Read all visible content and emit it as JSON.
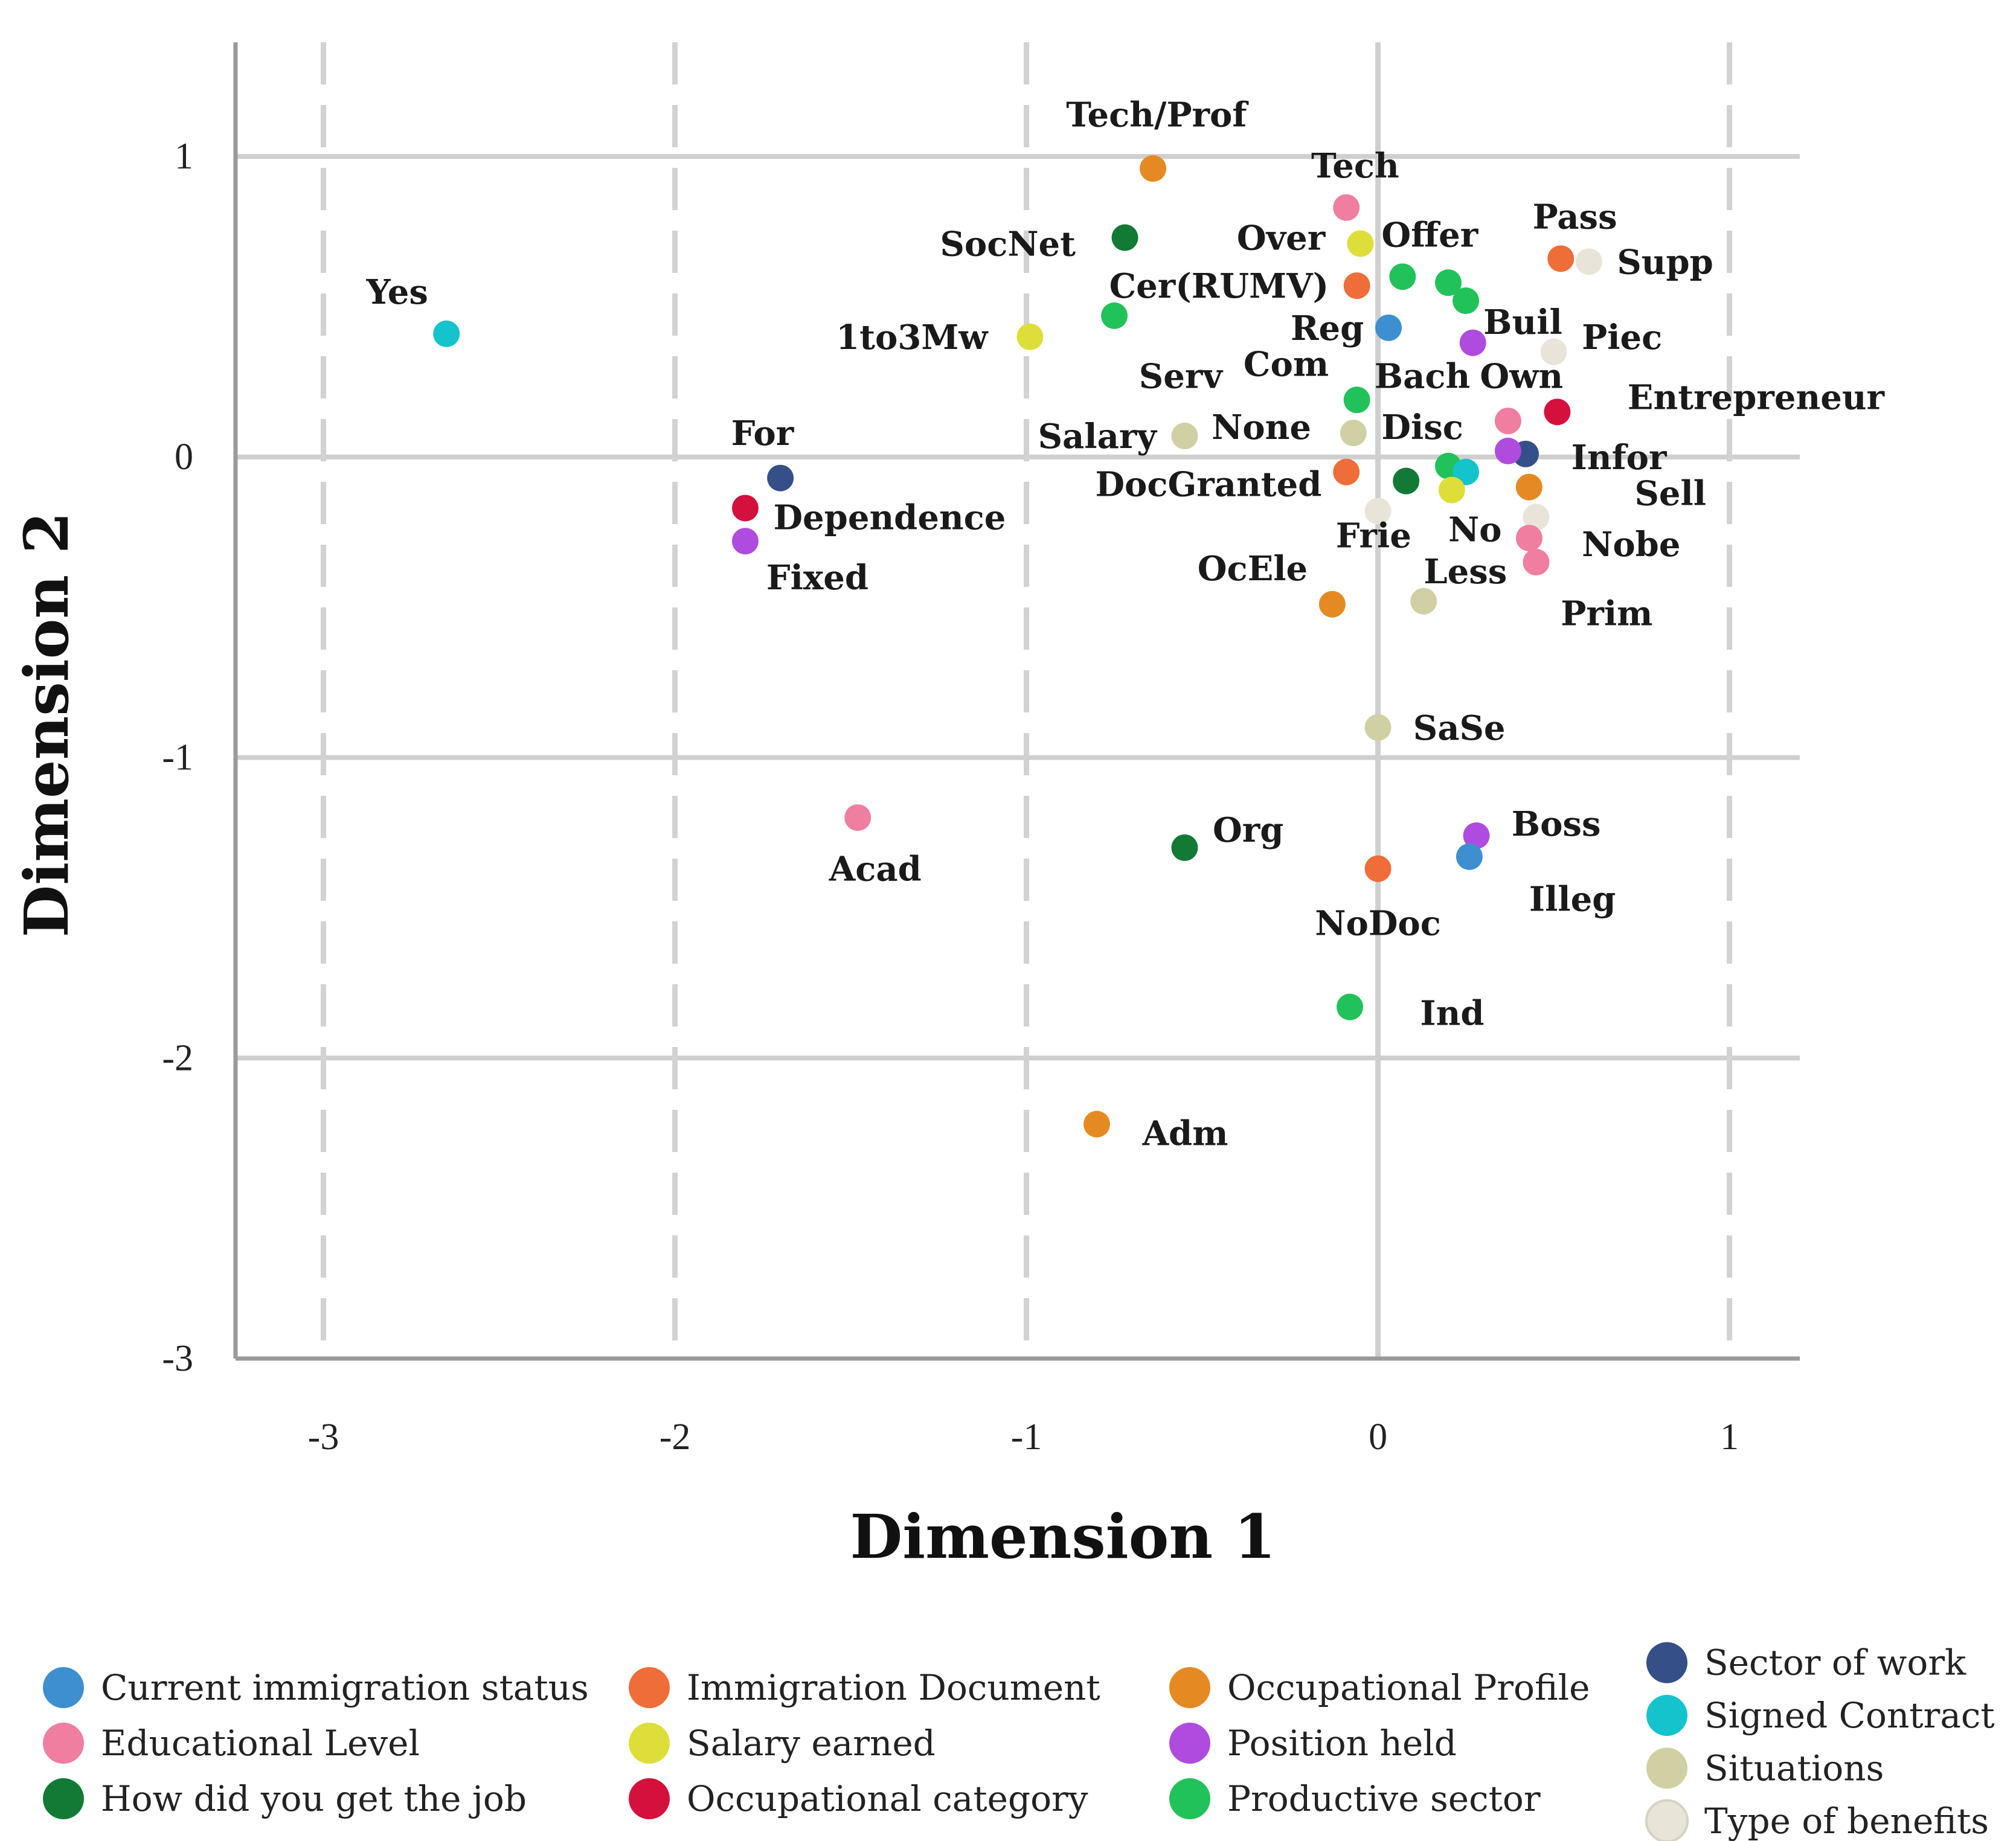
{
  "chart_data": {
    "type": "scatter",
    "xlabel": "Dimension 1",
    "ylabel": "Dimension 2",
    "xlim": [
      -3.25,
      1.2
    ],
    "ylim": [
      -3.0,
      1.38
    ],
    "xticks": [
      -3,
      -2,
      -1,
      0,
      1
    ],
    "yticks": [
      1,
      0,
      -1,
      -2,
      -3
    ],
    "dashed_vlines": [
      -3,
      -2,
      -1,
      1
    ],
    "solid_vlines": [
      0
    ],
    "hlines": [
      1,
      0,
      -1,
      -2
    ],
    "categories": [
      {
        "name": "Current immigration status",
        "color": "#3d8fd0"
      },
      {
        "name": "Educational Level",
        "color": "#f07ea0"
      },
      {
        "name": "How did you get the job",
        "color": "#127a35"
      },
      {
        "name": "Immigration Document",
        "color": "#ef6d38"
      },
      {
        "name": "Salary earned",
        "color": "#dede3a"
      },
      {
        "name": "Occupational category",
        "color": "#d4103c"
      },
      {
        "name": "Occupational Profile",
        "color": "#e58a22"
      },
      {
        "name": "Position held",
        "color": "#b04be0"
      },
      {
        "name": "Productive sector",
        "color": "#22c25a"
      },
      {
        "name": "Sector of work",
        "color": "#354f88"
      },
      {
        "name": "Signed Contract",
        "color": "#14c3cc"
      },
      {
        "name": "Situations",
        "color": "#d0d0a4"
      },
      {
        "name": "Type of benefits",
        "color": "#e9e4d8"
      }
    ],
    "points": [
      {
        "label": "Yes",
        "cat": 10,
        "x": -2.65,
        "y": 0.41,
        "lx": -0.14,
        "ly": 0.14,
        "anchor": "middle"
      },
      {
        "label": "Tech/Prof",
        "cat": 6,
        "x": -0.64,
        "y": 0.96,
        "lx": 0.01,
        "ly": 0.18,
        "anchor": "middle"
      },
      {
        "label": "Tech",
        "cat": 1,
        "x": -0.09,
        "y": 0.83,
        "lx": -0.1,
        "ly": 0.14,
        "anchor": "start"
      },
      {
        "label": "SocNet",
        "cat": 2,
        "x": -0.72,
        "y": 0.73,
        "lx": -0.14,
        "ly": -0.02,
        "anchor": "end"
      },
      {
        "label": "Over",
        "cat": 4,
        "x": -0.05,
        "y": 0.71,
        "lx": -0.1,
        "ly": 0.02,
        "anchor": "end"
      },
      {
        "label": "Offer",
        "cat": 8,
        "x": 0.07,
        "y": 0.6,
        "lx": -0.06,
        "ly": 0.14,
        "anchor": "start"
      },
      {
        "label": "Pass",
        "cat": 3,
        "x": 0.52,
        "y": 0.66,
        "lx": -0.08,
        "ly": 0.14,
        "anchor": "start"
      },
      {
        "label": "Supp",
        "cat": 12,
        "x": 0.6,
        "y": 0.65,
        "lx": 0.08,
        "ly": 0.0,
        "anchor": "start"
      },
      {
        "label": "Cer(RUMV)",
        "cat": 3,
        "x": -0.06,
        "y": 0.57,
        "lx": -0.08,
        "ly": 0.0,
        "anchor": "end"
      },
      {
        "label": "",
        "cat": 8,
        "x": 0.2,
        "y": 0.58,
        "lx": 0,
        "ly": 0,
        "anchor": "start"
      },
      {
        "label": "Buil",
        "cat": 8,
        "x": 0.25,
        "y": 0.52,
        "lx": 0.05,
        "ly": -0.07,
        "anchor": "start"
      },
      {
        "label": "Serv",
        "cat": 8,
        "x": -0.75,
        "y": 0.47,
        "lx": 0.07,
        "ly": -0.2,
        "anchor": "start"
      },
      {
        "label": "1to3Mw",
        "cat": 4,
        "x": -0.99,
        "y": 0.4,
        "lx": -0.12,
        "ly": 0.0,
        "anchor": "end"
      },
      {
        "label": "Reg",
        "cat": 0,
        "x": 0.03,
        "y": 0.43,
        "lx": -0.07,
        "ly": 0.0,
        "anchor": "end"
      },
      {
        "label": "",
        "cat": 7,
        "x": 0.27,
        "y": 0.38,
        "lx": 0,
        "ly": 0,
        "anchor": "start"
      },
      {
        "label": "Piec",
        "cat": 12,
        "x": 0.5,
        "y": 0.35,
        "lx": 0.08,
        "ly": 0.05,
        "anchor": "start"
      },
      {
        "label": "Com",
        "cat": 8,
        "x": -0.06,
        "y": 0.19,
        "lx": -0.08,
        "ly": 0.12,
        "anchor": "end"
      },
      {
        "label": "Bach",
        "cat": 1,
        "x": 0.37,
        "y": 0.12,
        "lx": -0.38,
        "ly": 0.15,
        "anchor": "start"
      },
      {
        "label": "Own",
        "cat": 5,
        "x": 0.51,
        "y": 0.15,
        "lx": -0.22,
        "ly": 0.12,
        "anchor": "start"
      },
      {
        "label": "Entrepreneur",
        "cat": 9,
        "x": 0.42,
        "y": 0.01,
        "lx": 0.29,
        "ly": 0.19,
        "anchor": "start"
      },
      {
        "label": "Salary",
        "cat": 11,
        "x": -0.55,
        "y": 0.07,
        "lx": -0.08,
        "ly": 0.0,
        "anchor": "end"
      },
      {
        "label": "None",
        "cat": 11,
        "x": -0.07,
        "y": 0.08,
        "lx": -0.12,
        "ly": 0.02,
        "anchor": "end"
      },
      {
        "label": "Disc",
        "cat": 8,
        "x": 0.2,
        "y": -0.03,
        "lx": -0.19,
        "ly": 0.13,
        "anchor": "start"
      },
      {
        "label": "Infor",
        "cat": 7,
        "x": 0.37,
        "y": 0.02,
        "lx": 0.18,
        "ly": -0.02,
        "anchor": "start"
      },
      {
        "label": "",
        "cat": 10,
        "x": 0.25,
        "y": -0.05,
        "lx": 0,
        "ly": 0,
        "anchor": "start"
      },
      {
        "label": "DocGranted",
        "cat": 3,
        "x": -0.09,
        "y": -0.05,
        "lx": -0.07,
        "ly": -0.04,
        "anchor": "end"
      },
      {
        "label": "",
        "cat": 2,
        "x": 0.08,
        "y": -0.08,
        "lx": 0,
        "ly": 0,
        "anchor": "start"
      },
      {
        "label": "No",
        "cat": 4,
        "x": 0.21,
        "y": -0.11,
        "lx": -0.01,
        "ly": -0.13,
        "anchor": "start"
      },
      {
        "label": "Sell",
        "cat": 6,
        "x": 0.43,
        "y": -0.1,
        "lx": 0.3,
        "ly": -0.02,
        "anchor": "start"
      },
      {
        "label": "Frie",
        "cat": 12,
        "x": 0.0,
        "y": -0.18,
        "lx": -0.12,
        "ly": -0.08,
        "anchor": "start"
      },
      {
        "label": "",
        "cat": 12,
        "x": 0.45,
        "y": -0.2,
        "lx": 0,
        "ly": 0,
        "anchor": "start"
      },
      {
        "label": "Nobe",
        "cat": 1,
        "x": 0.43,
        "y": -0.27,
        "lx": 0.15,
        "ly": -0.02,
        "anchor": "start"
      },
      {
        "label": "Less",
        "cat": 11,
        "x": 0.13,
        "y": -0.48,
        "lx": 0.0,
        "ly": 0.1,
        "anchor": "start"
      },
      {
        "label": "Prim",
        "cat": 1,
        "x": 0.45,
        "y": -0.35,
        "lx": 0.07,
        "ly": -0.17,
        "anchor": "start"
      },
      {
        "label": "OcEle",
        "cat": 6,
        "x": -0.13,
        "y": -0.49,
        "lx": -0.07,
        "ly": 0.12,
        "anchor": "end"
      },
      {
        "label": "For",
        "cat": 9,
        "x": -1.7,
        "y": -0.07,
        "lx": -0.14,
        "ly": 0.15,
        "anchor": "start"
      },
      {
        "label": "Dependence",
        "cat": 5,
        "x": -1.8,
        "y": -0.17,
        "lx": 0.08,
        "ly": -0.03,
        "anchor": "start"
      },
      {
        "label": "Fixed",
        "cat": 7,
        "x": -1.8,
        "y": -0.28,
        "lx": 0.06,
        "ly": -0.12,
        "anchor": "start"
      },
      {
        "label": "SaSe",
        "cat": 11,
        "x": 0.0,
        "y": -0.9,
        "lx": 0.1,
        "ly": 0.0,
        "anchor": "start"
      },
      {
        "label": "Acad",
        "cat": 1,
        "x": -1.48,
        "y": -1.2,
        "lx": 0.05,
        "ly": -0.17,
        "anchor": "middle"
      },
      {
        "label": "Org",
        "cat": 2,
        "x": -0.55,
        "y": -1.3,
        "lx": 0.08,
        "ly": 0.06,
        "anchor": "start"
      },
      {
        "label": "Boss",
        "cat": 7,
        "x": 0.28,
        "y": -1.26,
        "lx": 0.1,
        "ly": 0.04,
        "anchor": "start"
      },
      {
        "label": "Illeg",
        "cat": 0,
        "x": 0.26,
        "y": -1.33,
        "lx": 0.17,
        "ly": -0.14,
        "anchor": "start"
      },
      {
        "label": "NoDoc",
        "cat": 3,
        "x": 0.0,
        "y": -1.37,
        "lx": 0.0,
        "ly": -0.18,
        "anchor": "middle"
      },
      {
        "label": "Ind",
        "cat": 8,
        "x": -0.08,
        "y": -1.83,
        "lx": 0.2,
        "ly": -0.02,
        "anchor": "start"
      },
      {
        "label": "Adm",
        "cat": 6,
        "x": -0.8,
        "y": -2.22,
        "lx": 0.13,
        "ly": -0.03,
        "anchor": "start"
      }
    ]
  }
}
